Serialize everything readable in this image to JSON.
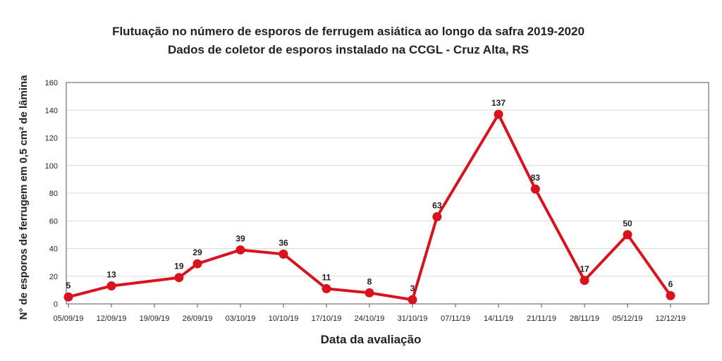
{
  "chart_data": {
    "type": "line",
    "title": "Flutuação no número de esporos de ferrugem asiática ao longo da safra 2019-2020",
    "subtitle": "Dados de coletor de esporos instalado na CCGL - Cruz Alta, RS",
    "xlabel": "Data da avaliação",
    "ylabel": "N° de esporos de ferrugem em 0,5 cm² de lâmina",
    "ylim": [
      0,
      160
    ],
    "yticks": [
      "0",
      "20",
      "40",
      "60",
      "80",
      "100",
      "120",
      "140",
      "160"
    ],
    "xticks": [
      "05/09/19",
      "12/09/19",
      "19/09/19",
      "26/09/19",
      "03/10/19",
      "10/10/19",
      "17/10/19",
      "24/10/19",
      "31/10/19",
      "07/11/19",
      "14/11/19",
      "21/11/19",
      "28/11/19",
      "05/12/19",
      "12/12/19"
    ],
    "grid": true,
    "legend": "none",
    "color": "#d7141e",
    "series": [
      {
        "points": [
          {
            "x": "05/09/19",
            "y": 5,
            "label": "5"
          },
          {
            "x": "12/09/19",
            "y": 13,
            "label": "13"
          },
          {
            "x": "23/09/19",
            "y": 19,
            "label": "19"
          },
          {
            "x": "26/09/19",
            "y": 29,
            "label": "29"
          },
          {
            "x": "03/10/19",
            "y": 39,
            "label": "39"
          },
          {
            "x": "10/10/19",
            "y": 36,
            "label": "36"
          },
          {
            "x": "17/10/19",
            "y": 11,
            "label": "11"
          },
          {
            "x": "24/10/19",
            "y": 8,
            "label": "8"
          },
          {
            "x": "31/10/19",
            "y": 3,
            "label": "3"
          },
          {
            "x": "04/11/19",
            "y": 63,
            "label": "63"
          },
          {
            "x": "14/11/19",
            "y": 137,
            "label": "137"
          },
          {
            "x": "20/11/19",
            "y": 83,
            "label": "83"
          },
          {
            "x": "28/11/19",
            "y": 17,
            "label": "17"
          },
          {
            "x": "05/12/19",
            "y": 50,
            "label": "50"
          },
          {
            "x": "12/12/19",
            "y": 6,
            "label": "6"
          }
        ]
      }
    ]
  }
}
